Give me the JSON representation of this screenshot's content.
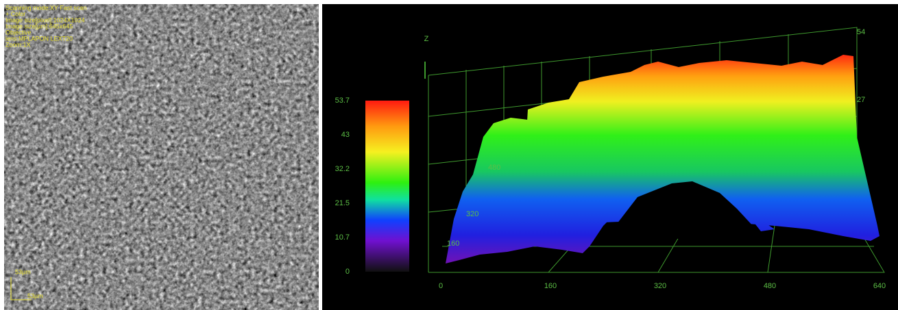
{
  "micrograph": {
    "info": [
      "Scanning mode:XY Fast scan",
      "+ Color",
      "Image size[pixel]:1024X1024",
      "Image size[µm]:645x645",
      "Objective",
      "lens:MPLAPON LEXT20",
      "Zoom:1X"
    ],
    "scale_y": "53µm",
    "scale_x": "53µm"
  },
  "surface_plot": {
    "z_axis": "Z",
    "colorbar_labels": [
      "53.7",
      "43",
      "32.2",
      "21.5",
      "10.7",
      "0"
    ],
    "x_labels": [
      "0",
      "160",
      "320",
      "480",
      "640"
    ],
    "depth_labels": [
      "160",
      "320",
      "480"
    ],
    "z_labels": [
      "54",
      "27"
    ]
  }
}
